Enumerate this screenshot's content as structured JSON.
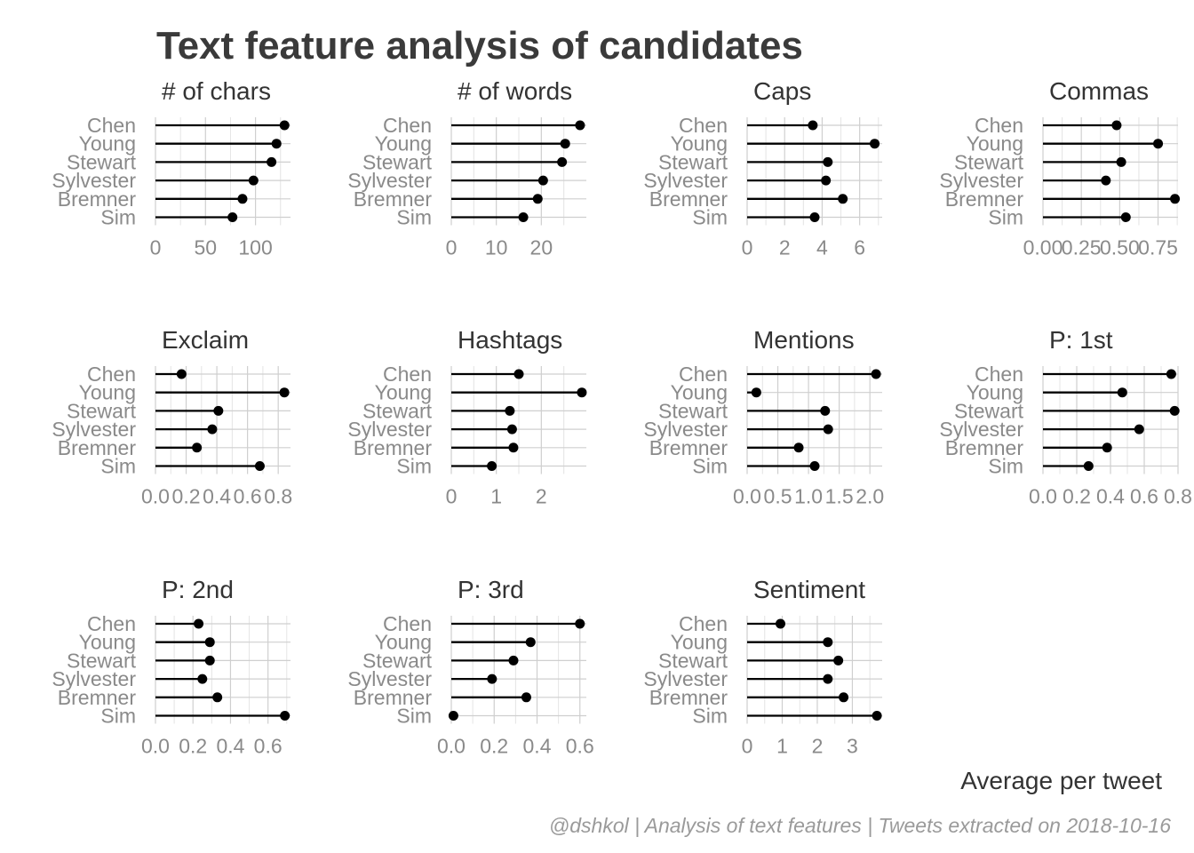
{
  "chart_data": {
    "type": "lollipop",
    "title": "Text feature analysis of candidates",
    "xlabel": "Average per tweet",
    "caption": "@dshkol | Analysis of text features | Tweets extracted on 2018-10-16",
    "categories": [
      "Chen",
      "Young",
      "Stewart",
      "Sylvester",
      "Bremner",
      "Sim"
    ],
    "grid": true,
    "facets": [
      {
        "name": "# of chars",
        "ticks": [
          0,
          50,
          100
        ],
        "tick_labels": [
          "0",
          "50",
          "100"
        ],
        "xlim": [
          0,
          135
        ],
        "values": [
          129,
          121,
          116,
          98,
          87,
          77
        ]
      },
      {
        "name": "# of words",
        "ticks": [
          0,
          10,
          20
        ],
        "tick_labels": [
          "0",
          "10",
          "20"
        ],
        "xlim": [
          0,
          30
        ],
        "values": [
          28.6,
          25.3,
          24.6,
          20.4,
          19.2,
          16.0
        ]
      },
      {
        "name": "Caps",
        "ticks": [
          0,
          2,
          4,
          6
        ],
        "tick_labels": [
          "0",
          "2",
          "4",
          "6"
        ],
        "xlim": [
          0,
          7.2
        ],
        "values": [
          3.5,
          6.8,
          4.3,
          4.2,
          5.1,
          3.6
        ]
      },
      {
        "name": "Commas",
        "ticks": [
          0,
          0.25,
          0.5,
          0.75
        ],
        "tick_labels": [
          "0.00",
          "0.25",
          "0.50",
          "0.75"
        ],
        "xlim": [
          0,
          0.88
        ],
        "values": [
          0.48,
          0.75,
          0.51,
          0.41,
          0.86,
          0.54
        ]
      },
      {
        "name": "Exclaim",
        "ticks": [
          0,
          0.2,
          0.4,
          0.6,
          0.8
        ],
        "tick_labels": [
          "0.0",
          "0.2",
          "0.4",
          "0.6",
          "0.8"
        ],
        "xlim": [
          0,
          0.88
        ],
        "values": [
          0.17,
          0.84,
          0.41,
          0.37,
          0.27,
          0.68
        ]
      },
      {
        "name": "Hashtags",
        "ticks": [
          0,
          1,
          2
        ],
        "tick_labels": [
          "0",
          "1",
          "2"
        ],
        "xlim": [
          0,
          3.0
        ],
        "values": [
          1.5,
          2.9,
          1.3,
          1.35,
          1.38,
          0.9
        ]
      },
      {
        "name": "Mentions",
        "ticks": [
          0,
          0.5,
          1.0,
          1.5,
          2.0
        ],
        "tick_labels": [
          "0.0",
          "0.5",
          "1.0",
          "1.5",
          "2.0"
        ],
        "xlim": [
          0,
          2.2
        ],
        "values": [
          2.1,
          0.15,
          1.27,
          1.32,
          0.84,
          1.1
        ]
      },
      {
        "name": "P: 1st",
        "ticks": [
          0,
          0.2,
          0.4,
          0.6,
          0.8
        ],
        "tick_labels": [
          "0.0",
          "0.2",
          "0.4",
          "0.6",
          "0.8"
        ],
        "xlim": [
          0,
          0.8
        ],
        "values": [
          0.76,
          0.47,
          0.78,
          0.57,
          0.38,
          0.27
        ]
      },
      {
        "name": "P: 2nd",
        "ticks": [
          0,
          0.2,
          0.4,
          0.6
        ],
        "tick_labels": [
          "0.0",
          "0.2",
          "0.4",
          "0.6"
        ],
        "xlim": [
          0,
          0.72
        ],
        "values": [
          0.23,
          0.29,
          0.29,
          0.25,
          0.33,
          0.69
        ]
      },
      {
        "name": "P: 3rd",
        "ticks": [
          0,
          0.2,
          0.4,
          0.6
        ],
        "tick_labels": [
          "0.0",
          "0.2",
          "0.4",
          "0.6"
        ],
        "xlim": [
          0,
          0.63
        ],
        "values": [
          0.6,
          0.37,
          0.29,
          0.19,
          0.35,
          0.01
        ]
      },
      {
        "name": "Sentiment",
        "ticks": [
          0,
          1,
          2,
          3
        ],
        "tick_labels": [
          "0",
          "1",
          "2",
          "3"
        ],
        "xlim": [
          0,
          3.85
        ],
        "values": [
          0.95,
          2.3,
          2.6,
          2.3,
          2.75,
          3.7
        ]
      }
    ],
    "colors": {
      "points": "#000000",
      "grid": "#d6d6d6",
      "text": "#333333",
      "muted": "#8a8a8a"
    }
  }
}
